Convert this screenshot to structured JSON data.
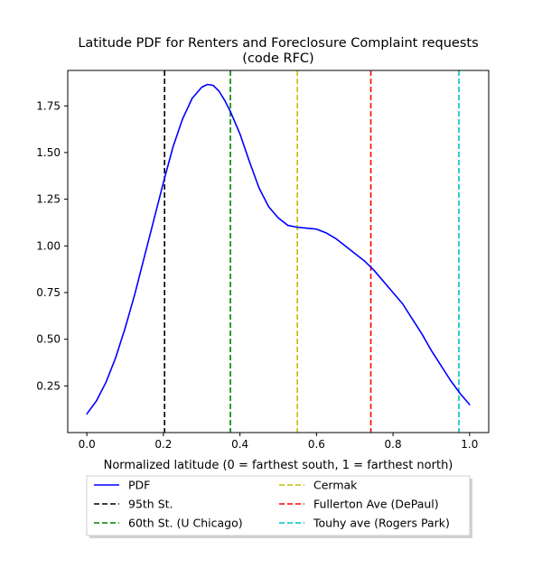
{
  "chart_data": {
    "type": "line",
    "title": "Latitude PDF for Renters and Foreclosure Complaint  requests",
    "subtitle": "(code RFC)",
    "xlabel": "Normalized latitude (0 = farthest south, 1 = farthest north)",
    "ylabel": "",
    "xlim": [
      -0.05,
      1.05
    ],
    "ylim": [
      0.0,
      1.94
    ],
    "xticks": [
      0.0,
      0.2,
      0.4,
      0.6,
      0.8,
      1.0
    ],
    "xtick_labels": [
      "0.0",
      "0.2",
      "0.4",
      "0.6",
      "0.8",
      "1.0"
    ],
    "yticks": [
      0.25,
      0.5,
      0.75,
      1.0,
      1.25,
      1.5,
      1.75
    ],
    "ytick_labels": [
      "0.25",
      "0.50",
      "0.75",
      "1.00",
      "1.25",
      "1.50",
      "1.75"
    ],
    "grid": false,
    "legend_position": "below",
    "series": [
      {
        "name": "PDF",
        "color": "#0000ff",
        "style": "solid",
        "x": [
          0.0,
          0.025,
          0.05,
          0.075,
          0.1,
          0.125,
          0.15,
          0.175,
          0.2,
          0.225,
          0.25,
          0.275,
          0.3,
          0.315,
          0.33,
          0.345,
          0.36,
          0.375,
          0.4,
          0.425,
          0.45,
          0.475,
          0.5,
          0.525,
          0.55,
          0.575,
          0.6,
          0.625,
          0.65,
          0.675,
          0.7,
          0.725,
          0.75,
          0.775,
          0.8,
          0.825,
          0.85,
          0.875,
          0.9,
          0.925,
          0.95,
          0.975,
          1.0
        ],
        "y": [
          0.1,
          0.17,
          0.27,
          0.4,
          0.56,
          0.74,
          0.94,
          1.14,
          1.34,
          1.53,
          1.68,
          1.79,
          1.85,
          1.865,
          1.86,
          1.83,
          1.78,
          1.72,
          1.6,
          1.45,
          1.31,
          1.21,
          1.15,
          1.11,
          1.1,
          1.095,
          1.09,
          1.07,
          1.04,
          1.0,
          0.96,
          0.92,
          0.87,
          0.81,
          0.75,
          0.69,
          0.61,
          0.53,
          0.44,
          0.36,
          0.28,
          0.21,
          0.15
        ]
      },
      {
        "name": "95th St.",
        "color": "#000000",
        "style": "dashed",
        "x": 0.203
      },
      {
        "name": "60th St. (U Chicago)",
        "color": "#008000",
        "style": "dashed",
        "x": 0.375
      },
      {
        "name": "Cermak",
        "color": "#bfbf00",
        "style": "dashed",
        "x": 0.55
      },
      {
        "name": "Fullerton Ave (DePaul)",
        "color": "#ff0000",
        "style": "dashed",
        "x": 0.742
      },
      {
        "name": "Touhy ave (Rogers Park)",
        "color": "#00bfbf",
        "style": "dashed",
        "x": 0.972
      }
    ]
  }
}
